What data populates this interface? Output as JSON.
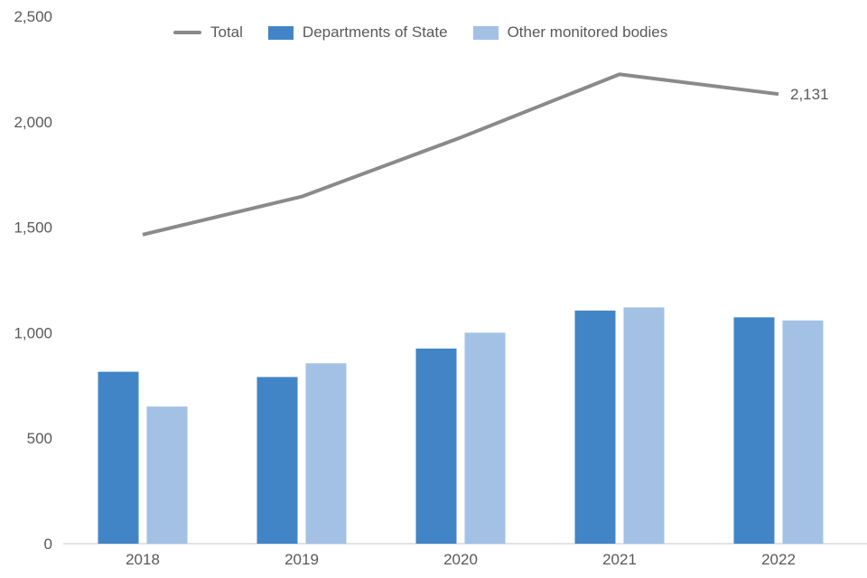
{
  "figure": {
    "background_color": "#ffffff",
    "text_color": "#595959",
    "axis_line_color": "#d9d9d9"
  },
  "legend": {
    "position": "top",
    "items": [
      {
        "label": "Total",
        "swatch": "line",
        "color": "#8a8a8a"
      },
      {
        "label": "Departments of State",
        "swatch": "rect",
        "color": "#4285c6"
      },
      {
        "label": "Other monitored bodies",
        "swatch": "rect",
        "color": "#a2c1e5"
      }
    ]
  },
  "chart_data": {
    "type": "combo",
    "title": "",
    "xlabel": "",
    "ylabel": "",
    "grid": false,
    "legend_position": "top",
    "categories": [
      "2018",
      "2019",
      "2020",
      "2021",
      "2022"
    ],
    "series": [
      {
        "name": "Departments of State",
        "type": "bar",
        "color": "#4285c6",
        "values": [
          815,
          790,
          925,
          1105,
          1073
        ]
      },
      {
        "name": "Other monitored bodies",
        "type": "bar",
        "color": "#a2c1e5",
        "values": [
          650,
          855,
          1000,
          1120,
          1058
        ]
      },
      {
        "name": "Total",
        "type": "line",
        "color": "#8a8a8a",
        "values": [
          1465,
          1645,
          1925,
          2225,
          2131
        ]
      }
    ],
    "y_axis": {
      "min": 0,
      "max": 2500,
      "tick_interval": 500,
      "tick_labels": [
        "0",
        "500",
        "1,000",
        "1,500",
        "2,000",
        "2,500"
      ]
    },
    "annotations": [
      {
        "text": "2,131",
        "series": "Total",
        "category": "2022",
        "position": "line-end-right"
      }
    ]
  }
}
